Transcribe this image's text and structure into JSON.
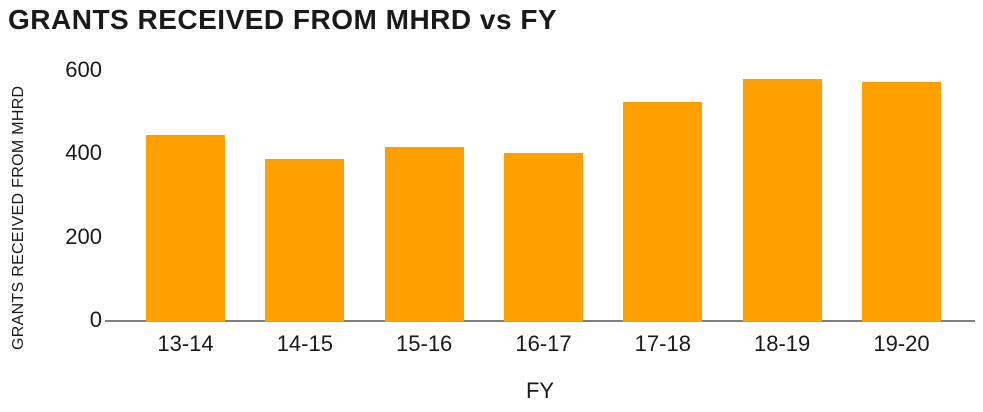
{
  "chart": {
    "title": "GRANTS RECEIVED FROM MHRD vs FY",
    "x_label": "FY",
    "y_label": "GRANTS RECEIVED FROM MHRD"
  },
  "chart_data": {
    "type": "bar",
    "title": "GRANTS RECEIVED FROM MHRD vs FY",
    "xlabel": "FY",
    "ylabel": "GRANTS RECEIVED FROM MHRD",
    "categories": [
      "13-14",
      "14-15",
      "15-16",
      "16-17",
      "17-18",
      "18-19",
      "19-20"
    ],
    "values": [
      450,
      392,
      420,
      405,
      527,
      583,
      576
    ],
    "ylim": [
      0,
      600
    ],
    "yticks": [
      0,
      200,
      400,
      600
    ],
    "grid": false,
    "legend_position": "none",
    "bar_color": "#FFA000",
    "axis_line_color": "#7F7F7F",
    "text_color": "#1A1A1A"
  }
}
